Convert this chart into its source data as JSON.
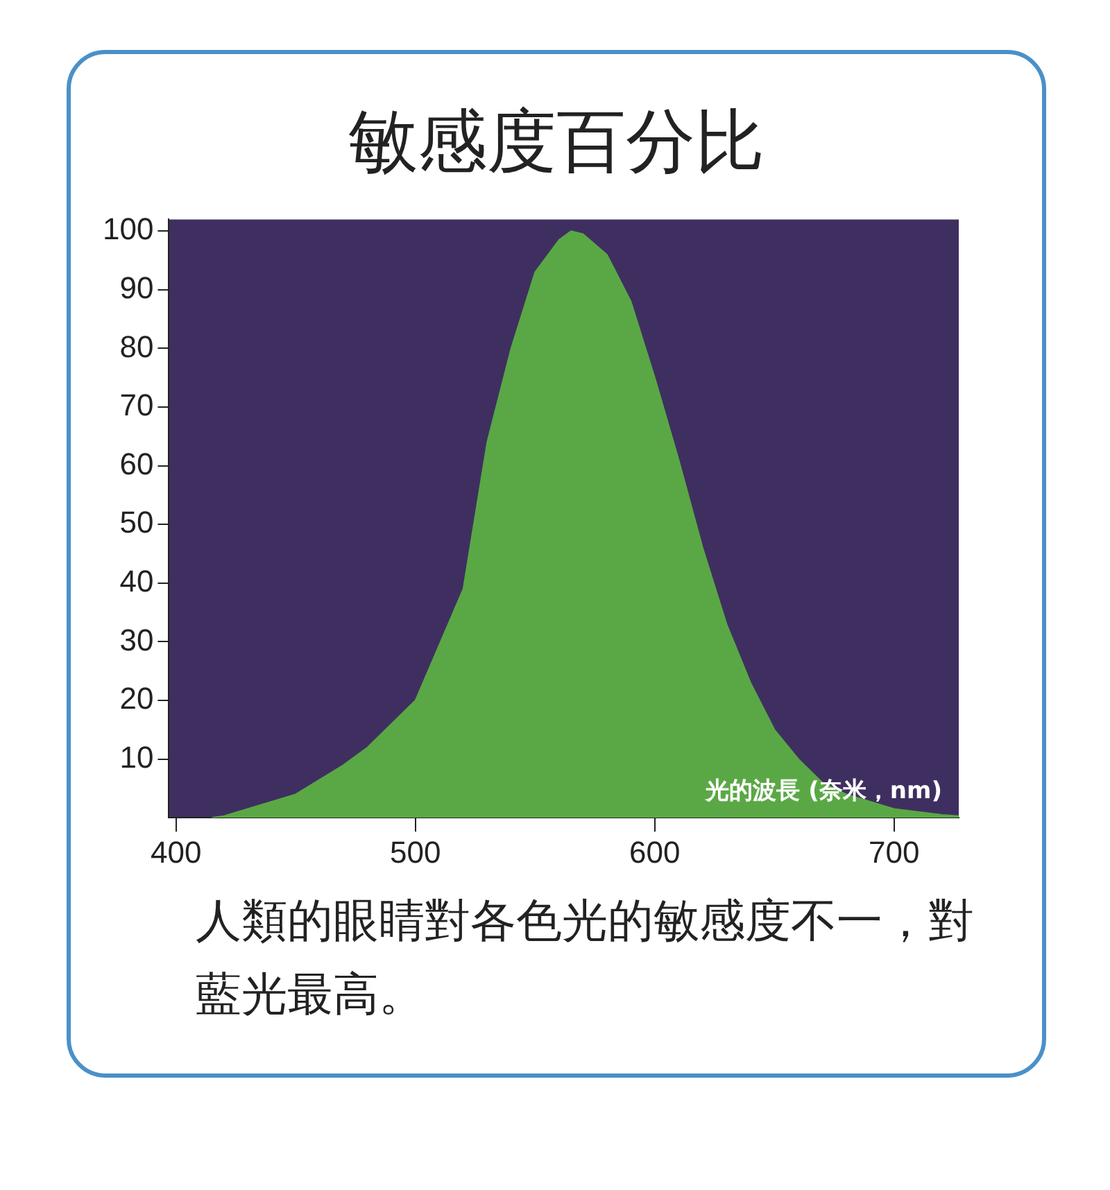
{
  "chart_data": {
    "type": "area",
    "title": "敏感度百分比",
    "xlabel": "光的波長 (奈米，nm)",
    "x": [
      415,
      420,
      450,
      470,
      480,
      500,
      520,
      530,
      540,
      550,
      560,
      565,
      570,
      580,
      590,
      600,
      610,
      620,
      630,
      640,
      650,
      660,
      670,
      680,
      700,
      720,
      727
    ],
    "series": [
      {
        "color": "#5aa845",
        "values": [
          0,
          0.3,
          4,
          9,
          12,
          20,
          39,
          64,
          80,
          93,
          98.5,
          100,
          99.5,
          96,
          88,
          75,
          61,
          46,
          33,
          23,
          15,
          10,
          6,
          4,
          1.5,
          0.5,
          0.3
        ]
      }
    ],
    "xlim": [
      397,
      727
    ],
    "ylim": [
      0,
      102
    ],
    "xticks": [
      400,
      500,
      600,
      700
    ],
    "yticks": [
      10,
      20,
      30,
      40,
      50,
      60,
      70,
      80,
      90,
      100
    ],
    "grid": false,
    "legend": false,
    "marker": "none",
    "annotations": [
      "人類的眼睛對各色光的敏感度不一，對藍光最高。"
    ]
  }
}
